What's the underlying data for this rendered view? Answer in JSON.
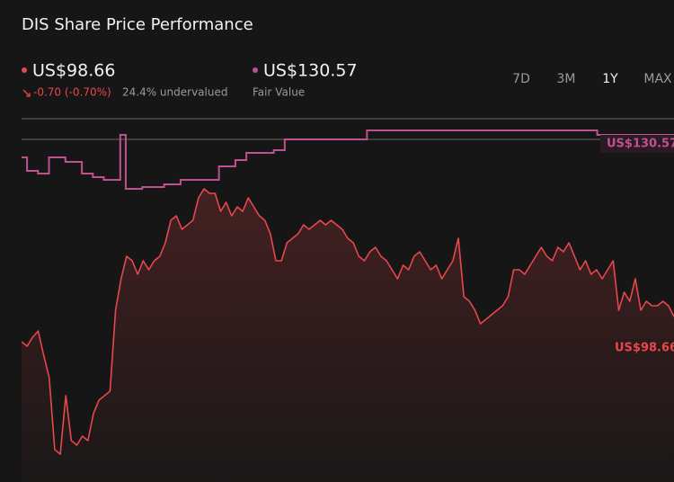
{
  "chart_data": {
    "type": "line",
    "title": "DIS Share Price Performance",
    "ylim": [
      69.59,
      135.32
    ],
    "ranges": [
      "7D",
      "3M",
      "1Y",
      "MAX"
    ],
    "active_range": "1Y",
    "series": [
      {
        "color": "#e8474c",
        "label": "US$98.66",
        "change": "-0.70 (-0.70%)",
        "valuation": "24.4% undervalued",
        "values": [
          94.24,
          93.45,
          95.03,
          96.13,
          91.87,
          87.92,
          75.28,
          74.49,
          84.76,
          76.86,
          76.07,
          77.65,
          76.86,
          81.6,
          83.97,
          84.76,
          85.55,
          99.77,
          105.3,
          109.25,
          108.46,
          106.09,
          108.46,
          106.88,
          108.46,
          109.25,
          111.62,
          115.57,
          116.36,
          113.99,
          114.78,
          115.57,
          119.52,
          121.1,
          120.31,
          120.31,
          117.15,
          118.73,
          116.36,
          117.94,
          117.15,
          119.52,
          117.94,
          116.36,
          115.57,
          113.2,
          108.46,
          108.46,
          111.62,
          112.41,
          113.2,
          114.78,
          113.99,
          114.78,
          115.57,
          114.78,
          115.57,
          114.78,
          113.99,
          112.41,
          111.62,
          109.25,
          108.46,
          110.04,
          110.83,
          109.25,
          108.46,
          106.88,
          105.3,
          107.67,
          106.88,
          109.25,
          110.04,
          108.46,
          106.88,
          107.67,
          105.3,
          106.88,
          108.46,
          112.41,
          102.14,
          101.35,
          99.77,
          97.4,
          98.19,
          98.98,
          99.77,
          100.56,
          102.14,
          106.88,
          106.88,
          106.09,
          107.67,
          109.25,
          110.83,
          109.25,
          108.46,
          110.83,
          110.04,
          111.62,
          109.25,
          106.88,
          108.46,
          106.09,
          106.88,
          105.3,
          106.88,
          108.46,
          99.77,
          102.93,
          101.35,
          105.3,
          99.77,
          101.35,
          100.56,
          100.56,
          101.35,
          100.56,
          98.66
        ]
      },
      {
        "name": "Fair Value",
        "color": "#c0508f",
        "label": "US$130.57",
        "values": [
          126.63,
          124.26,
          124.26,
          123.78,
          123.78,
          126.63,
          126.63,
          126.63,
          125.84,
          125.84,
          125.84,
          123.78,
          123.78,
          123.15,
          123.15,
          122.68,
          122.68,
          122.68,
          130.57,
          121.1,
          121.1,
          121.1,
          121.41,
          121.41,
          121.41,
          121.41,
          121.89,
          121.89,
          121.89,
          122.68,
          122.68,
          122.68,
          122.68,
          122.68,
          122.68,
          122.68,
          125.05,
          125.05,
          125.05,
          126.15,
          126.15,
          127.42,
          127.42,
          127.42,
          127.42,
          127.42,
          127.89,
          127.89,
          129.79,
          129.79,
          129.79,
          129.79,
          129.79,
          129.79,
          129.79,
          129.79,
          129.79,
          129.79,
          129.79,
          129.79,
          129.79,
          129.79,
          129.79,
          131.37,
          131.37,
          131.37,
          131.37,
          131.37,
          131.37,
          131.37,
          131.37,
          131.37,
          131.37,
          131.37,
          131.37,
          131.37,
          131.37,
          131.37,
          131.37,
          131.37,
          131.37,
          131.37,
          131.37,
          131.37,
          131.37,
          131.37,
          131.37,
          131.37,
          131.37,
          131.37,
          131.37,
          131.37,
          131.37,
          131.37,
          131.37,
          131.37,
          131.37,
          131.37,
          131.37,
          131.37,
          131.37,
          131.37,
          131.37,
          131.37,
          131.37,
          130.57,
          130.57,
          130.57,
          130.57,
          130.57,
          130.57,
          130.57,
          130.57,
          130.57,
          130.57,
          130.57,
          130.57,
          130.57,
          130.57,
          130.57
        ]
      }
    ]
  }
}
